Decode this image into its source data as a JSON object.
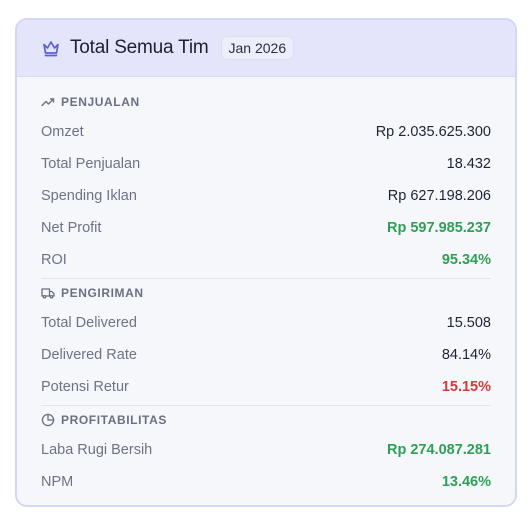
{
  "header": {
    "title": "Total Semua Tim",
    "period": "Jan 2026"
  },
  "sections": [
    {
      "title": "PENJUALAN",
      "icon": "trending-up-icon",
      "rows": [
        {
          "label": "Omzet",
          "value": "Rp 2.035.625.300",
          "tone": "default"
        },
        {
          "label": "Total Penjualan",
          "value": "18.432",
          "tone": "default"
        },
        {
          "label": "Spending Iklan",
          "value": "Rp 627.198.206",
          "tone": "default"
        },
        {
          "label": "Net Profit",
          "value": "Rp 597.985.237",
          "tone": "positive"
        },
        {
          "label": "ROI",
          "value": "95.34%",
          "tone": "positive"
        }
      ]
    },
    {
      "title": "PENGIRIMAN",
      "icon": "truck-icon",
      "rows": [
        {
          "label": "Total Delivered",
          "value": "15.508",
          "tone": "default"
        },
        {
          "label": "Delivered Rate",
          "value": "84.14%",
          "tone": "default"
        },
        {
          "label": "Potensi Retur",
          "value": "15.15%",
          "tone": "negative"
        }
      ]
    },
    {
      "title": "PROFITABILITAS",
      "icon": "pie-chart-icon",
      "rows": [
        {
          "label": "Laba Rugi Bersih",
          "value": "Rp 274.087.281",
          "tone": "positive"
        },
        {
          "label": "NPM",
          "value": "13.46%",
          "tone": "positive"
        }
      ]
    }
  ],
  "colors": {
    "accent": "#5b5fd6",
    "positive": "#2ea055",
    "negative": "#d23a3a",
    "header_bg": "#e4e5fb"
  }
}
